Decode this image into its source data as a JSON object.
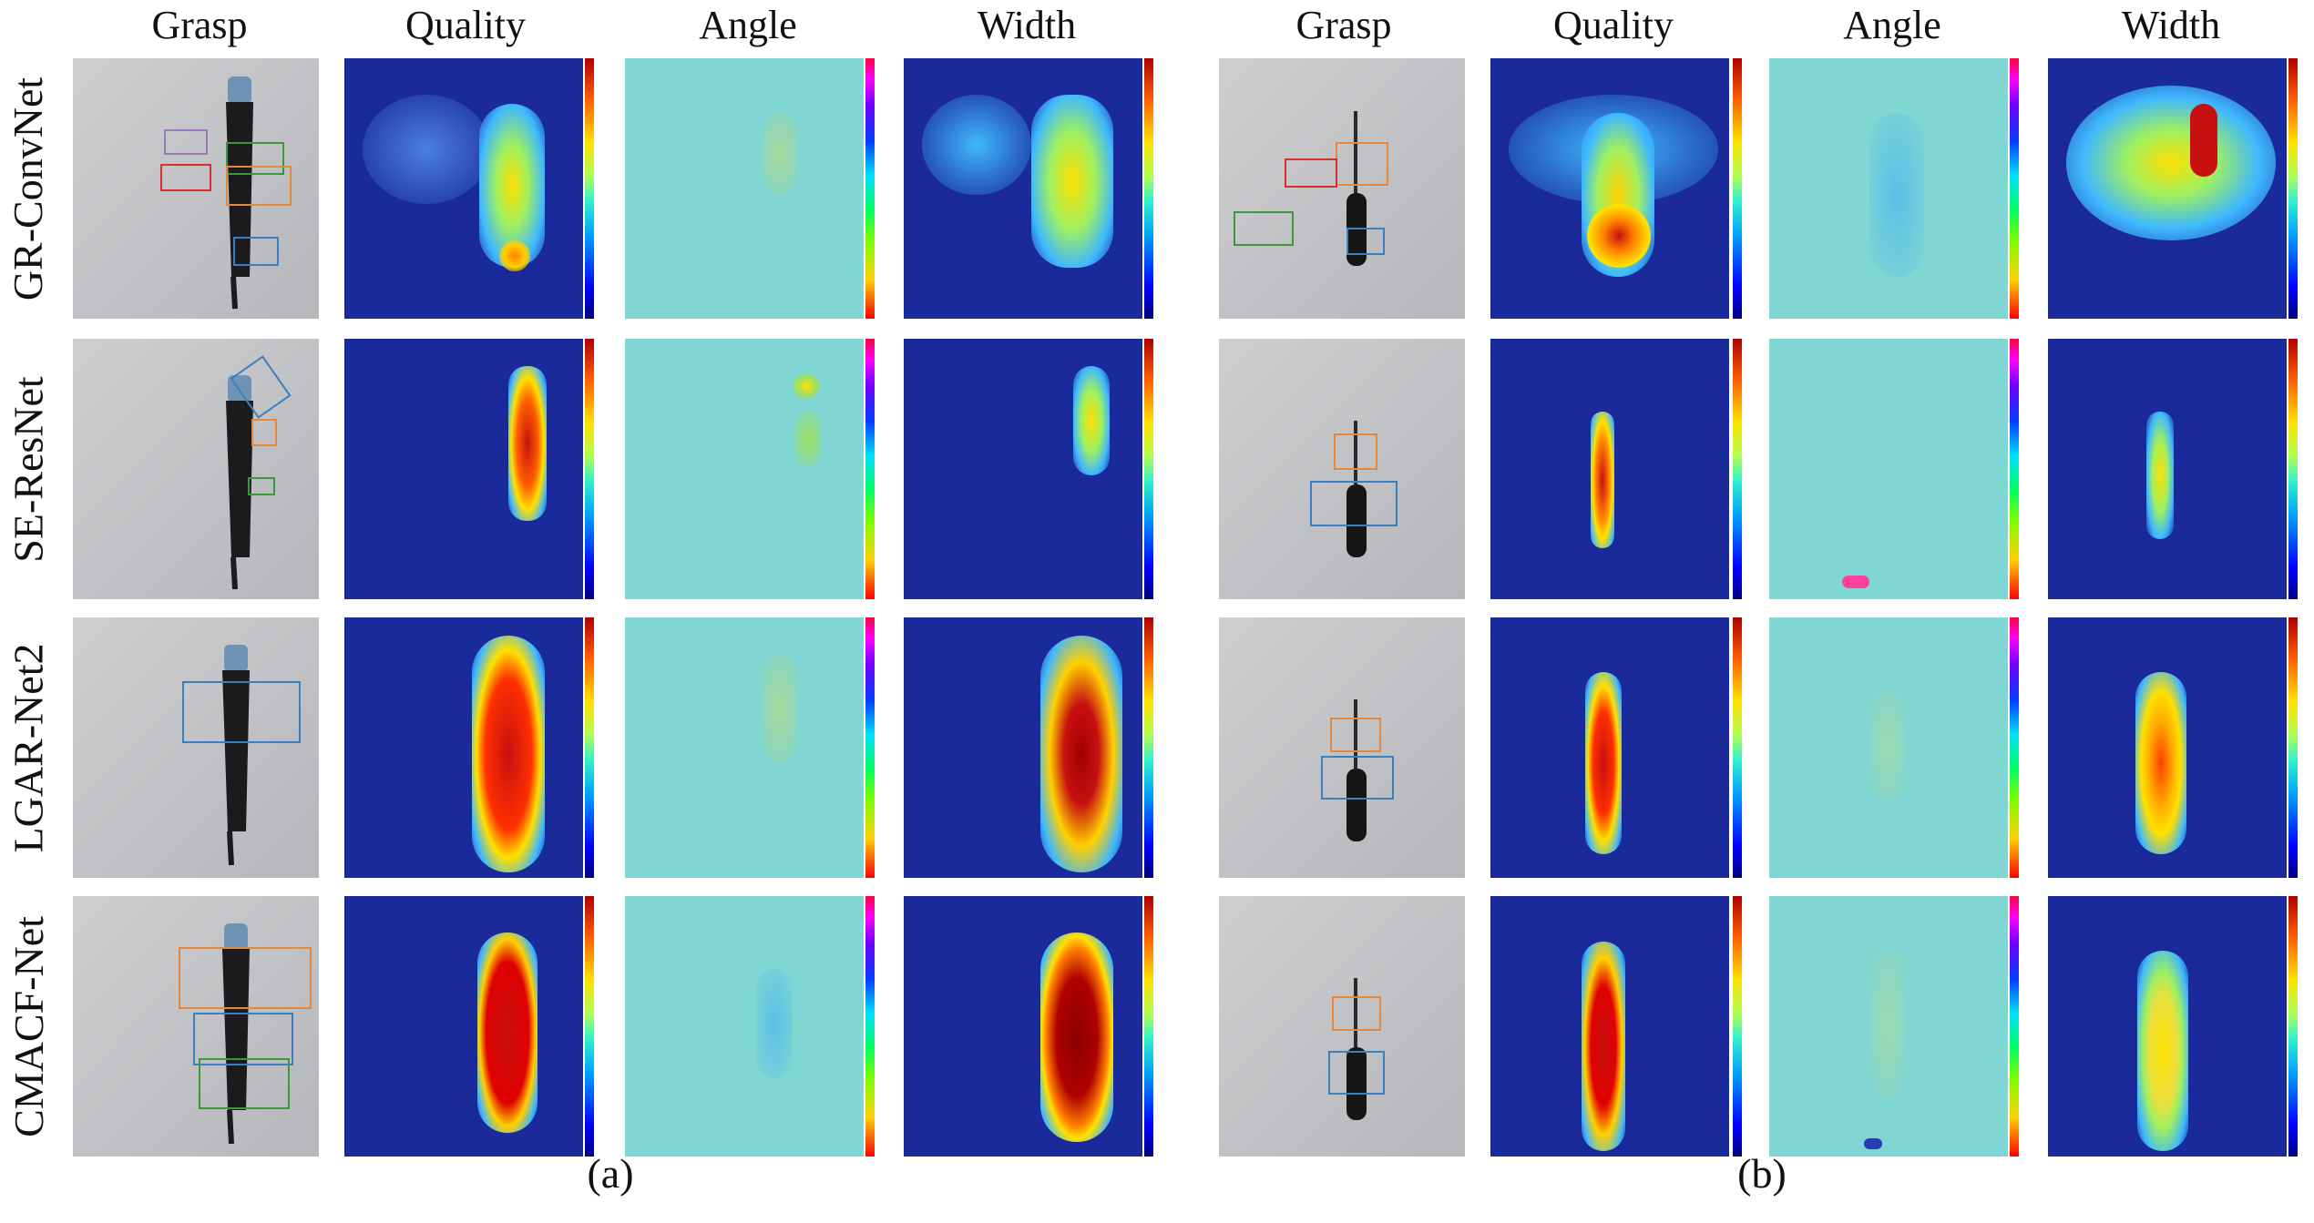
{
  "column_headers": [
    "Grasp",
    "Quality",
    "Angle",
    "Width"
  ],
  "row_labels": [
    "GR-ConvNet",
    "SE-ResNet",
    "LGAR-Net2",
    "CMACF-Net"
  ],
  "group_labels": [
    "(a)",
    "(b)"
  ],
  "groups": [
    "umbrella",
    "screwdriver"
  ],
  "colors": {
    "quality_bg": "#1a2a9a",
    "angle_bg": "#7fd6d2",
    "hot_core": "#c81010",
    "warm": "#ffd000",
    "cool": "#3fb8ff",
    "box_orange": "#e8863a",
    "box_blue": "#3a7fc0",
    "box_red": "#d33030",
    "box_green": "#3a9a3a",
    "box_purple": "#9a7ab8"
  }
}
